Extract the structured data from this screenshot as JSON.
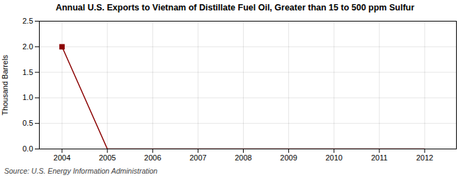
{
  "chart_data": {
    "type": "line",
    "title": "Annual U.S. Exports to Vietnam of Distillate Fuel Oil, Greater than 15 to 500 ppm Sulfur",
    "ylabel": "Thousand Barrels",
    "source": "Source: U.S. Energy Information Administration",
    "x": [
      2004,
      2005,
      2006,
      2007,
      2008,
      2009,
      2010,
      2011,
      2012
    ],
    "series": [
      {
        "type": "line",
        "color": "#8b0000",
        "values": [
          2.0,
          0,
          0,
          0,
          0,
          0,
          0,
          0,
          0
        ]
      },
      {
        "type": "scatter",
        "color": "#8b0000",
        "marker": "square",
        "values": [
          2.0,
          null,
          null,
          null,
          null,
          null,
          null,
          null,
          null
        ]
      }
    ],
    "xlim": [
      2003.5,
      2012.7
    ],
    "xticks": [
      2004,
      2005,
      2006,
      2007,
      2008,
      2009,
      2010,
      2011,
      2012
    ],
    "ylim": [
      0.0,
      2.5
    ],
    "yticks": [
      {
        "value": 0.0,
        "label": "0.0"
      },
      0.5,
      {
        "value": 1.0,
        "label": "1.0"
      },
      1.5,
      {
        "value": 2.0,
        "label": "2.0"
      },
      2.5
    ],
    "grid": true
  }
}
